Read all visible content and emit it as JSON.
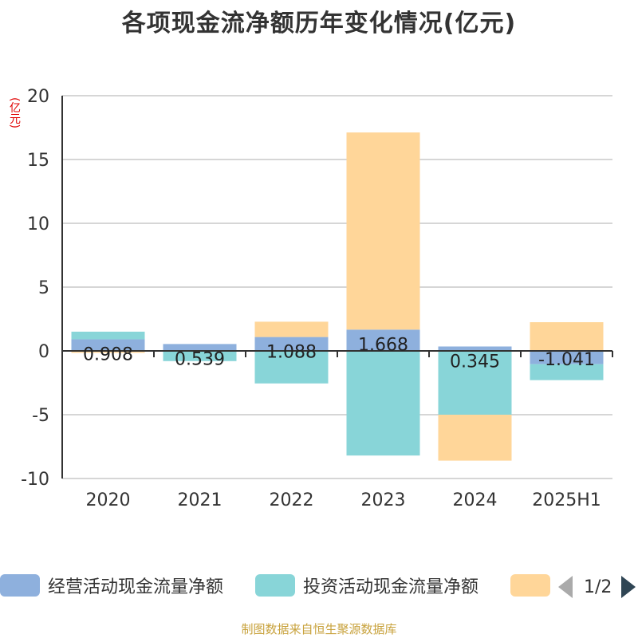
{
  "chart_data": {
    "type": "bar",
    "stacked": true,
    "title": "各项现金流净额历年变化情况(亿元)",
    "unit_label": "(亿元)",
    "categories": [
      "2020",
      "2021",
      "2022",
      "2023",
      "2024",
      "2025H1"
    ],
    "ylim": [
      -10,
      20
    ],
    "yticks": [
      -10,
      -5,
      0,
      5,
      10,
      15,
      20
    ],
    "grid": true,
    "series": [
      {
        "name": "经营活动现金流量净额",
        "color": "#8eb0dd",
        "values": [
          0.908,
          0.539,
          1.088,
          1.668,
          0.345,
          -1.041
        ],
        "labels": [
          "0.908",
          "0.539",
          "1.088",
          "1.668",
          "0.345",
          "-1.041"
        ]
      },
      {
        "name": "投资活动现金流量净额",
        "color": "#88d5d8",
        "values": [
          0.6,
          -0.8,
          -2.55,
          -8.2,
          -5.0,
          -1.25
        ]
      },
      {
        "name": "",
        "color": "#ffd699",
        "values": [
          -0.15,
          0,
          1.2,
          15.45,
          -3.6,
          2.25
        ]
      }
    ]
  },
  "legend": {
    "items": [
      "经营活动现金流量净额",
      "投资活动现金流量净额",
      ""
    ],
    "page_indicator": "1/2"
  },
  "source": "制图数据来自恒生聚源数据库"
}
